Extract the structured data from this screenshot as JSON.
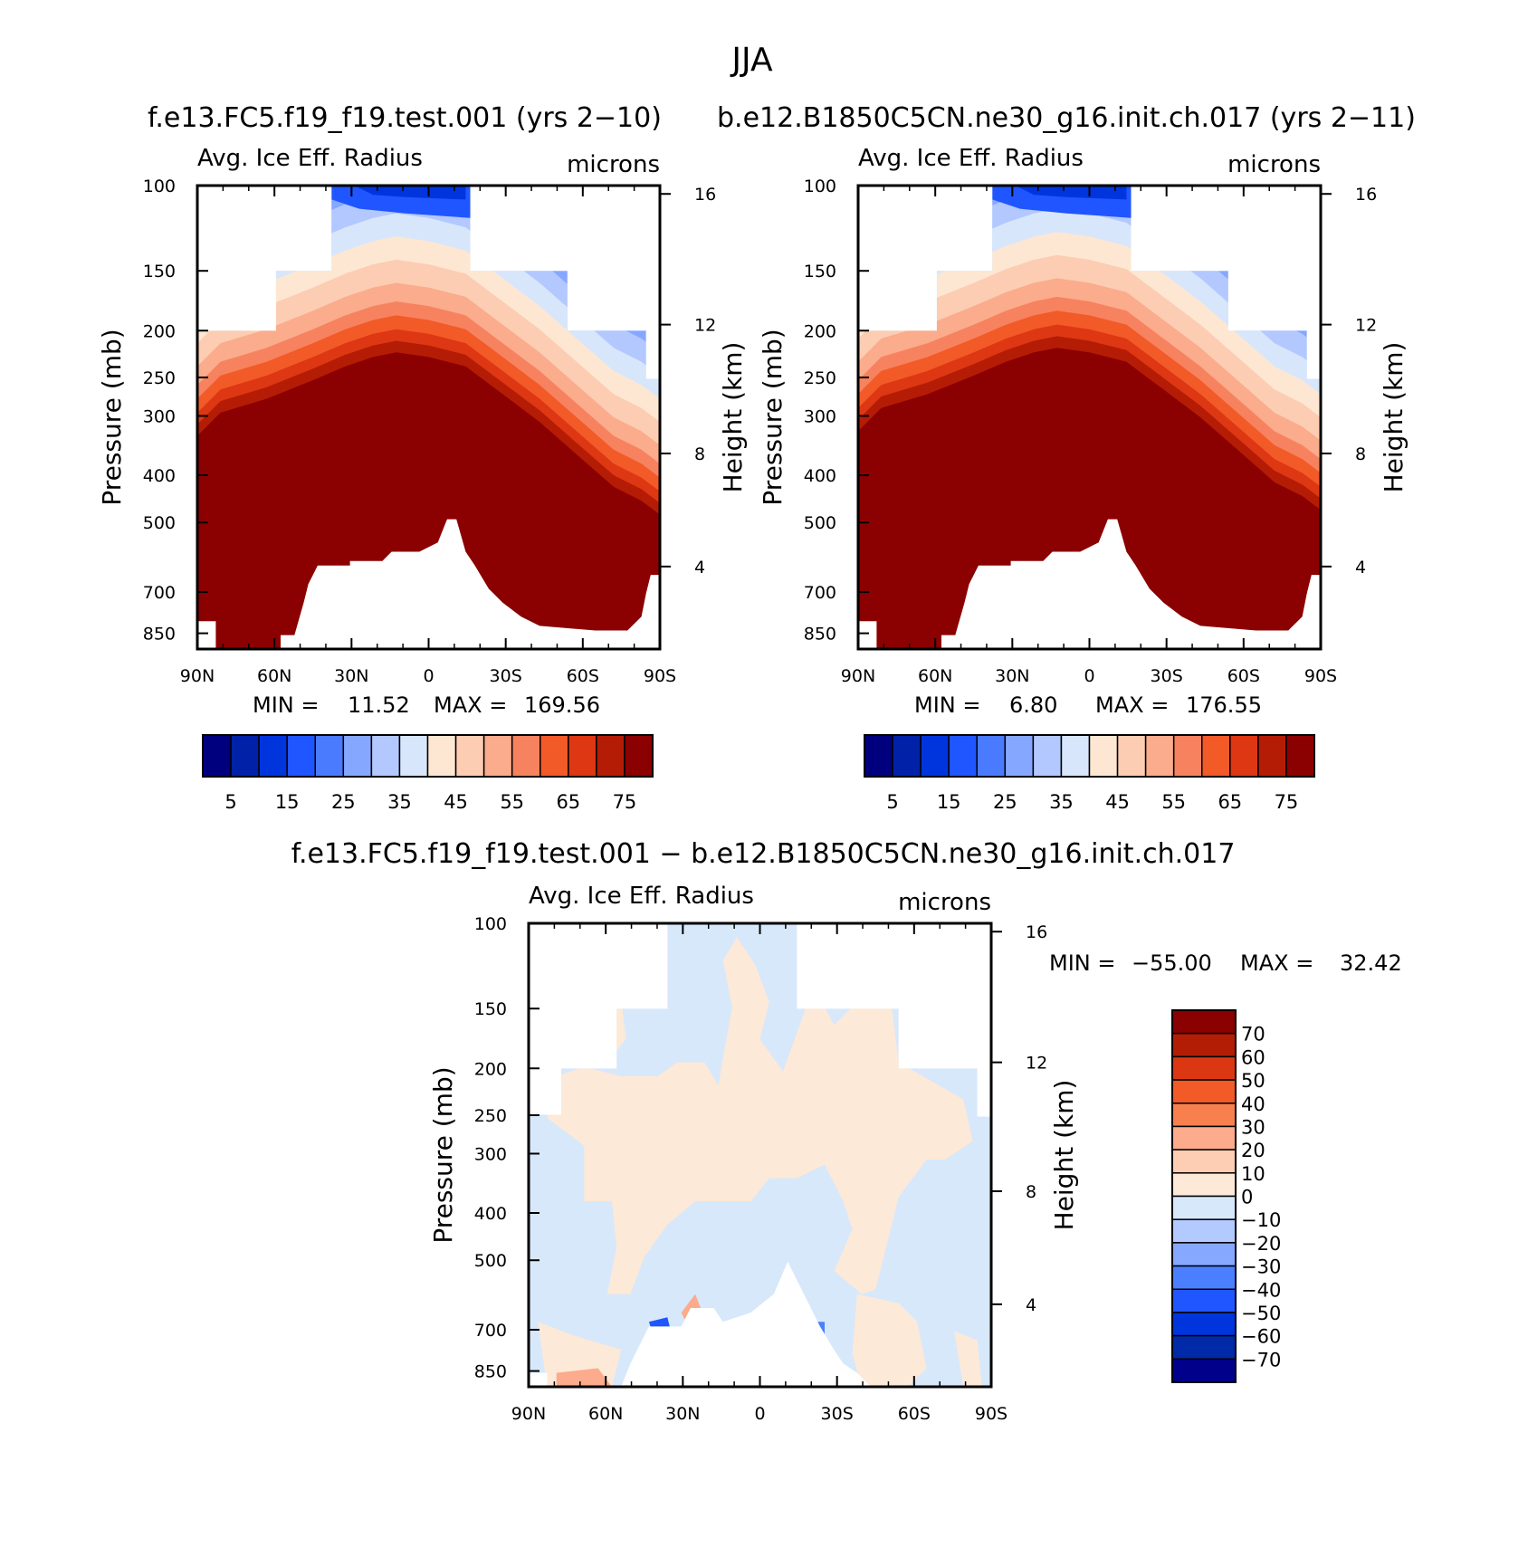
{
  "colors": {
    "left": [
      "#00007f",
      "#0021a8",
      "#0035dd",
      "#1f56ff",
      "#4a7bff",
      "#86a7ff",
      "#b3c8ff",
      "#d7e6fb",
      "#fde7d2",
      "#fccdb2",
      "#faac8c",
      "#f7825f",
      "#f25a28",
      "#de3713",
      "#b51c05",
      "#8b0000"
    ],
    "diff": [
      "#00008b",
      "#002aa8",
      "#0035dd",
      "#2056ff",
      "#4a80ff",
      "#86a8ff",
      "#b3caff",
      "#d7e8fb",
      "#fde9d8",
      "#fdcdb4",
      "#fcab8c",
      "#f8804f",
      "#f25a28",
      "#db3713",
      "#b31d05",
      "#8b0000"
    ]
  },
  "chart_data": [
    {
      "type": "contour",
      "suptitle": "JJA",
      "title": "f.e13.FC5.f19_f19.test.001 (yrs 2−10)",
      "left_label": "Avg. Ice Eff. Radius",
      "right_label": "microns",
      "ylabel": "Pressure (mb)",
      "ylabel_right": "Height (km)",
      "xticks": [
        "90N",
        "60N",
        "30N",
        "0",
        "30S",
        "60S",
        "90S"
      ],
      "yticks": [
        "100",
        "150",
        "200",
        "250",
        "300",
        "400",
        "500",
        "700",
        "850"
      ],
      "yticks_right": [
        "16",
        "12",
        "8",
        "4"
      ],
      "min_label": "MIN =",
      "min": "11.52",
      "max_label": "MAX =",
      "max": "169.56",
      "colorbar": {
        "levels": [
          "5",
          "15",
          "25",
          "35",
          "45",
          "55",
          "65",
          "75"
        ]
      }
    },
    {
      "type": "contour",
      "title": "b.e12.B1850C5CN.ne30_g16.init.ch.017 (yrs 2−11)",
      "left_label": "Avg. Ice Eff. Radius",
      "right_label": "microns",
      "ylabel": "Pressure (mb)",
      "ylabel_right": "Height (km)",
      "xticks": [
        "90N",
        "60N",
        "30N",
        "0",
        "30S",
        "60S",
        "90S"
      ],
      "yticks": [
        "100",
        "150",
        "200",
        "250",
        "300",
        "400",
        "500",
        "700",
        "850"
      ],
      "yticks_right": [
        "16",
        "12",
        "8",
        "4"
      ],
      "min_label": "MIN =",
      "min": "6.80",
      "max_label": "MAX =",
      "max": "176.55",
      "colorbar": {
        "levels": [
          "5",
          "15",
          "25",
          "35",
          "45",
          "55",
          "65",
          "75"
        ]
      }
    },
    {
      "type": "contour",
      "title": "f.e13.FC5.f19_f19.test.001 − b.e12.B1850C5CN.ne30_g16.init.ch.017",
      "left_label": "Avg. Ice Eff. Radius",
      "right_label": "microns",
      "ylabel": "Pressure (mb)",
      "ylabel_right": "Height (km)",
      "xticks": [
        "90N",
        "60N",
        "30N",
        "0",
        "30S",
        "60S",
        "90S"
      ],
      "yticks": [
        "100",
        "150",
        "200",
        "250",
        "300",
        "400",
        "500",
        "700",
        "850"
      ],
      "yticks_right": [
        "16",
        "12",
        "8",
        "4"
      ],
      "min_label": "MIN =",
      "min": "−55.00",
      "max_label": "MAX =",
      "max": "32.42",
      "colorbar": {
        "levels": [
          "70",
          "60",
          "50",
          "40",
          "30",
          "20",
          "10",
          "0",
          "−10",
          "−20",
          "−30",
          "−40",
          "−50",
          "−60",
          "−70"
        ]
      }
    }
  ]
}
